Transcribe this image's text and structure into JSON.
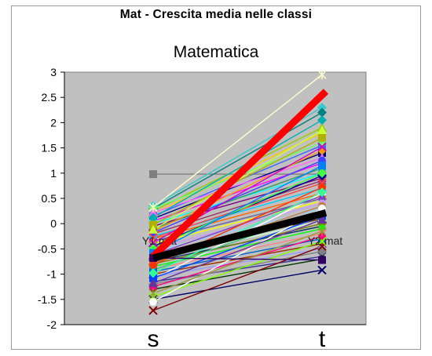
{
  "title": "Mat - Crescita media nelle classi",
  "chart_data": {
    "type": "line",
    "subtitle": "Matematica",
    "categories": [
      "s",
      "t"
    ],
    "ylim": [
      -2,
      3
    ],
    "yticks": [
      "3",
      "2.5",
      "2",
      "1.5",
      "1",
      "0.5",
      "0",
      "-0.5",
      "-1",
      "-1.5",
      "-2"
    ],
    "grid": false,
    "plot_background": "#c0c0c0",
    "point_labels": [
      "Y1 mat",
      "Y2 mat"
    ],
    "highlight_series": [
      {
        "color": "#ff0000",
        "values": [
          -0.65,
          2.6
        ]
      },
      {
        "color": "#000000",
        "values": [
          -0.68,
          0.2
        ]
      }
    ],
    "series_values": [
      [
        0.98,
        0.98
      ],
      [
        0.35,
        2.3
      ],
      [
        0.3,
        2.2
      ],
      [
        0.25,
        1.9
      ],
      [
        0.2,
        1.8
      ],
      [
        0.15,
        1.55
      ],
      [
        0.1,
        1.4
      ],
      [
        0.05,
        1.2
      ],
      [
        0.0,
        1.0
      ],
      [
        -0.05,
        0.9
      ],
      [
        -0.1,
        1.1
      ],
      [
        -0.15,
        1.45
      ],
      [
        -0.2,
        0.85
      ],
      [
        -0.25,
        0.7
      ],
      [
        -0.3,
        0.6
      ],
      [
        -0.35,
        0.5
      ],
      [
        -0.4,
        0.45
      ],
      [
        -0.45,
        0.95
      ],
      [
        -0.5,
        0.4
      ],
      [
        -0.55,
        0.3
      ],
      [
        -0.6,
        0.2
      ],
      [
        -0.65,
        0.1
      ],
      [
        -0.7,
        0.05
      ],
      [
        -0.75,
        -0.05
      ],
      [
        -0.8,
        0.0
      ],
      [
        -0.85,
        -0.1
      ],
      [
        -0.9,
        -0.2
      ],
      [
        -0.95,
        -0.3
      ],
      [
        -1.0,
        -0.4
      ],
      [
        -1.05,
        -0.5
      ],
      [
        -1.1,
        0.6
      ],
      [
        -1.15,
        -0.65
      ],
      [
        -1.2,
        -0.55
      ],
      [
        -1.3,
        -0.7
      ],
      [
        -1.4,
        -0.8
      ],
      [
        -1.5,
        -0.92
      ],
      [
        -1.72,
        -0.45
      ],
      [
        0.3,
        1.6
      ],
      [
        0.22,
        1.3
      ],
      [
        0.12,
        2.05
      ],
      [
        -0.02,
        1.7
      ],
      [
        -0.18,
        1.25
      ],
      [
        -0.28,
        0.8
      ],
      [
        -0.48,
        1.0
      ],
      [
        -0.62,
        0.55
      ],
      [
        -0.78,
        0.35
      ],
      [
        -0.92,
        0.25
      ],
      [
        -1.08,
        0.15
      ],
      [
        -1.25,
        -0.25
      ],
      [
        -1.45,
        -0.35
      ],
      [
        -1.55,
        0.3
      ],
      [
        0.32,
        2.95
      ],
      [
        -0.12,
        1.85
      ],
      [
        -0.38,
        1.52
      ],
      [
        -0.58,
        1.15
      ],
      [
        -0.82,
        0.72
      ],
      [
        -0.98,
        0.62
      ],
      [
        -1.18,
        0.08
      ],
      [
        -1.38,
        -0.15
      ],
      [
        -0.68,
        -0.72
      ]
    ],
    "series_colors": [
      "#7f7f7f",
      "#33cccc",
      "#008080",
      "#99cc00",
      "#ffcc00",
      "#3366ff",
      "#000080",
      "#ff00ff",
      "#00ffff",
      "#800080",
      "#339966",
      "#ff9900",
      "#993366",
      "#00ccff",
      "#ff6600",
      "#666699",
      "#ffff00",
      "#000099",
      "#cc99ff",
      "#99ccff",
      "#ff99cc",
      "#663300",
      "#ccffcc",
      "#003366",
      "#808000",
      "#00ff00",
      "#ff8080",
      "#0066cc",
      "#993300",
      "#9999ff",
      "#ffffff",
      "#333399",
      "#808080",
      "#003300",
      "#c0c0c0",
      "#000066",
      "#800000",
      "#66ff66",
      "#ff66ff",
      "#00b0b0",
      "#b0b000",
      "#4040ff",
      "#ff4040",
      "#40ff40",
      "#8040c0",
      "#c08040",
      "#40c080",
      "#0040ff",
      "#ff0080",
      "#80ff00",
      "#ffffff",
      "#ffffcc",
      "#ccff33",
      "#cc00cc",
      "#0080ff",
      "#ff3300",
      "#33ff99",
      "#663399",
      "#999933",
      "#330066"
    ],
    "series_markers": [
      "square",
      "diamond",
      "diamond",
      "triangle",
      "triangle",
      "square",
      "square",
      "circle",
      "x",
      "star",
      "circle",
      "diamond",
      "x",
      "square",
      "triangle",
      "circle",
      "star",
      "diamond",
      "circle",
      "square",
      "x",
      "triangle",
      "circle",
      "star",
      "diamond",
      "circle",
      "x",
      "square",
      "triangle",
      "circle",
      "circle",
      "star",
      "diamond",
      "circle",
      "x",
      "x",
      "x",
      "circle",
      "triangle",
      "diamond",
      "square",
      "circle",
      "x",
      "diamond",
      "triangle",
      "circle",
      "star",
      "square",
      "circle",
      "x",
      "circle",
      "star",
      "triangle",
      "x",
      "square",
      "circle",
      "diamond",
      "triangle",
      "star",
      "square"
    ]
  }
}
